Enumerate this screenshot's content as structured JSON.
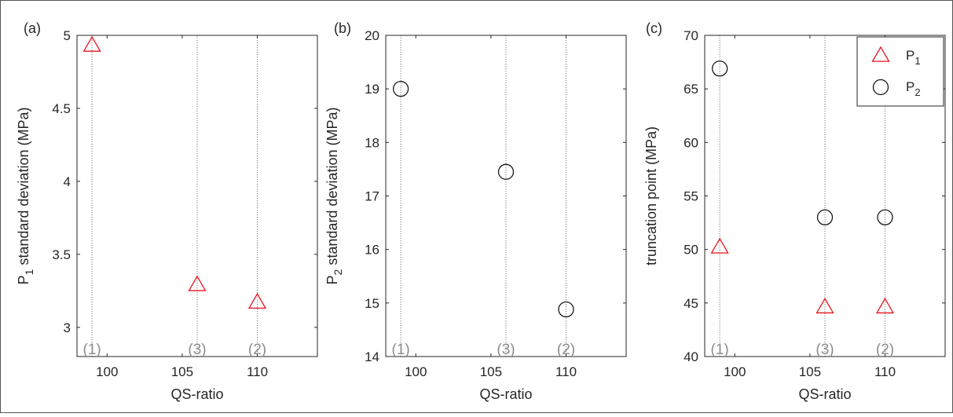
{
  "chart_data": [
    {
      "type": "scatter",
      "panel_label": "(a)",
      "xlabel": "QS-ratio",
      "ylabel": "P",
      "ylabel_sub": "1",
      "ylabel_rest": " standard deviation (MPa)",
      "xlim": [
        98,
        114
      ],
      "ylim": [
        2.8,
        5
      ],
      "xticks": [
        100,
        105,
        110
      ],
      "yticks": [
        3,
        3.5,
        4,
        4.5,
        5
      ],
      "ytick_labels": [
        "3",
        "3.5",
        "4",
        "4.5",
        "5"
      ],
      "grid_x": [
        99,
        106,
        110
      ],
      "run_labels": [
        {
          "x": 99,
          "text": "(1)"
        },
        {
          "x": 106,
          "text": "(3)"
        },
        {
          "x": 110,
          "text": "(2)"
        }
      ],
      "series": [
        {
          "marker": "triangle",
          "color": "#e8141c",
          "x": [
            99,
            106,
            110
          ],
          "y": [
            4.93,
            3.29,
            3.17
          ]
        }
      ]
    },
    {
      "type": "scatter",
      "panel_label": "(b)",
      "xlabel": "QS-ratio",
      "ylabel": "P",
      "ylabel_sub": "2",
      "ylabel_rest": " standard deviation (MPa)",
      "xlim": [
        98,
        114
      ],
      "ylim": [
        14,
        20
      ],
      "xticks": [
        100,
        105,
        110
      ],
      "yticks": [
        14,
        15,
        16,
        17,
        18,
        19,
        20
      ],
      "ytick_labels": [
        "14",
        "15",
        "16",
        "17",
        "18",
        "19",
        "20"
      ],
      "grid_x": [
        99,
        106,
        110
      ],
      "run_labels": [
        {
          "x": 99,
          "text": "(1)"
        },
        {
          "x": 106,
          "text": "(3)"
        },
        {
          "x": 110,
          "text": "(2)"
        }
      ],
      "series": [
        {
          "marker": "circle",
          "color": "#1a1a1a",
          "x": [
            99,
            106,
            110
          ],
          "y": [
            19.0,
            17.45,
            14.88
          ]
        }
      ]
    },
    {
      "type": "scatter",
      "panel_label": "(c)",
      "xlabel": "QS-ratio",
      "ylabel": "truncation point (MPa)",
      "ylabel_sub": "",
      "ylabel_rest": "",
      "xlim": [
        98,
        114
      ],
      "ylim": [
        40,
        70
      ],
      "xticks": [
        100,
        105,
        110
      ],
      "yticks": [
        40,
        45,
        50,
        55,
        60,
        65,
        70
      ],
      "ytick_labels": [
        "40",
        "45",
        "50",
        "55",
        "60",
        "65",
        "70"
      ],
      "grid_x": [
        99,
        106,
        110
      ],
      "run_labels": [
        {
          "x": 99,
          "text": "(1)"
        },
        {
          "x": 106,
          "text": "(3)"
        },
        {
          "x": 110,
          "text": "(2)"
        }
      ],
      "legend": {
        "placement": "top-right",
        "entries": [
          {
            "label": "P",
            "sub": "1",
            "marker": "triangle",
            "color": "#e8141c"
          },
          {
            "label": "P",
            "sub": "2",
            "marker": "circle",
            "color": "#1a1a1a"
          }
        ]
      },
      "series": [
        {
          "marker": "triangle",
          "color": "#e8141c",
          "x": [
            99,
            106,
            110
          ],
          "y": [
            50.2,
            44.6,
            44.6
          ]
        },
        {
          "marker": "circle",
          "color": "#1a1a1a",
          "x": [
            99,
            106,
            110
          ],
          "y": [
            66.9,
            53.0,
            53.0
          ]
        }
      ]
    }
  ]
}
